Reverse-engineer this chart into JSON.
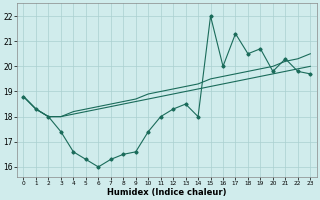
{
  "xlabel": "Humidex (Indice chaleur)",
  "xlim": [
    -0.5,
    23.5
  ],
  "ylim": [
    15.6,
    22.5
  ],
  "yticks": [
    16,
    17,
    18,
    19,
    20,
    21,
    22
  ],
  "xticks": [
    0,
    1,
    2,
    3,
    4,
    5,
    6,
    7,
    8,
    9,
    10,
    11,
    12,
    13,
    14,
    15,
    16,
    17,
    18,
    19,
    20,
    21,
    22,
    23
  ],
  "bg_color": "#d0ecec",
  "grid_color": "#aad0d0",
  "line_color": "#1a6b5a",
  "zigzag_x": [
    0,
    1,
    2,
    3,
    4,
    5,
    6,
    7,
    8,
    9,
    10,
    11,
    12,
    13,
    14,
    15,
    16,
    17,
    18,
    19,
    20,
    21,
    22,
    23
  ],
  "zigzag_y": [
    18.8,
    18.3,
    18.0,
    17.4,
    16.6,
    16.3,
    16.0,
    16.3,
    16.5,
    16.6,
    17.4,
    18.0,
    18.3,
    18.5,
    18.0,
    22.0,
    20.0,
    21.3,
    20.5,
    20.7,
    19.8,
    20.3,
    19.8,
    19.7
  ],
  "trend_upper_x": [
    0,
    1,
    2,
    3,
    4,
    5,
    6,
    7,
    8,
    9,
    10,
    11,
    12,
    13,
    14,
    15,
    16,
    17,
    18,
    19,
    20,
    21,
    22,
    23
  ],
  "trend_upper_y": [
    18.8,
    18.3,
    18.0,
    18.0,
    18.2,
    18.3,
    18.4,
    18.5,
    18.6,
    18.7,
    18.9,
    19.0,
    19.1,
    19.2,
    19.3,
    19.5,
    19.6,
    19.7,
    19.8,
    19.9,
    20.0,
    20.2,
    20.3,
    20.5
  ],
  "trend_lower_x": [
    0,
    1,
    2,
    3,
    4,
    5,
    6,
    7,
    8,
    9,
    10,
    11,
    12,
    13,
    14,
    15,
    16,
    17,
    18,
    19,
    20,
    21,
    22,
    23
  ],
  "trend_lower_y": [
    18.8,
    18.3,
    18.0,
    18.0,
    18.1,
    18.2,
    18.3,
    18.4,
    18.5,
    18.6,
    18.7,
    18.8,
    18.9,
    19.0,
    19.1,
    19.2,
    19.3,
    19.4,
    19.5,
    19.6,
    19.7,
    19.8,
    19.9,
    20.0
  ]
}
